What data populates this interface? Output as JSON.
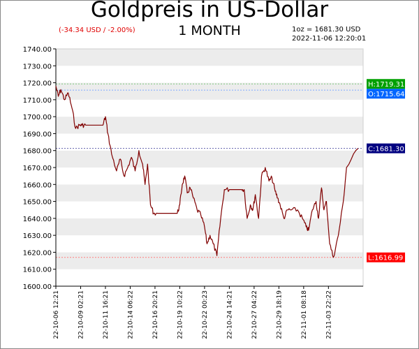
{
  "header": {
    "title": "Goldpreis in US-Dollar",
    "period": "1 MONTH",
    "change": "(-34.34 USD / -2.00%)",
    "price_line": "1oz = 1681.30 USD",
    "timestamp": "2022-11-06 12:20:01"
  },
  "markers": {
    "high": {
      "label": "H:1719.31",
      "value": 1719.31,
      "color": "#00a000",
      "line_color": "#7fc87f"
    },
    "open": {
      "label": "O:1715.64",
      "value": 1715.64,
      "color": "#0066ff",
      "line_color": "#7fa8ff"
    },
    "close": {
      "label": "C:1681.30",
      "value": 1681.3,
      "color": "#000080",
      "line_color": "#6a6ab0"
    },
    "low": {
      "label": "L:1616.99",
      "value": 1616.99,
      "color": "#ff0000",
      "line_color": "#ff7f7f"
    }
  },
  "chart_data": {
    "type": "line",
    "title": "Goldpreis in US-Dollar",
    "subtitle": "1 MONTH",
    "ylim": [
      1600,
      1740
    ],
    "yticks": [
      "1600.00",
      "1610.00",
      "1620.00",
      "1630.00",
      "1640.00",
      "1650.00",
      "1660.00",
      "1670.00",
      "1680.00",
      "1690.00",
      "1700.00",
      "1710.00",
      "1720.00",
      "1730.00",
      "1740.00"
    ],
    "xticks": [
      "22-10-06 12:21",
      "22-10-09 02:21",
      "22-10-11 16:21",
      "22-10-14 06:22",
      "22-10-16 20:21",
      "22-10-19 10:22",
      "22-10-22 00:23",
      "22-10-24 14:21",
      "22-10-27 04:22",
      "22-10-29 18:19",
      "22-11-01 08:18",
      "22-11-03 22:22"
    ],
    "grid": "alternating horizontal bands",
    "line_color": "#800000",
    "series": [
      {
        "x": [
          0,
          0.1,
          0.2,
          0.35,
          0.5,
          0.65,
          0.8,
          0.95,
          1.05,
          1.2,
          1.5,
          1.9,
          2.0,
          2.1,
          2.25,
          2.45,
          2.6,
          2.75,
          2.9,
          3.05,
          3.2,
          3.35,
          3.5,
          3.6,
          3.7,
          3.82,
          3.95,
          4.1,
          4.4,
          4.9,
          5.0,
          5.1,
          5.2,
          5.3,
          5.42,
          5.55,
          5.7,
          5.85,
          6.0,
          6.1,
          6.22,
          6.35,
          6.5,
          6.65,
          6.8,
          7.0,
          7.5,
          7.6,
          7.72,
          7.85,
          7.95,
          8.05,
          8.18,
          8.3,
          8.45,
          8.6,
          8.72,
          8.85,
          8.95,
          9.05,
          9.2,
          9.35,
          9.5,
          9.75,
          9.95,
          10.1,
          10.2,
          10.35,
          10.5,
          10.6,
          10.72,
          10.82,
          10.92,
          11.05,
          11.2,
          11.4,
          11.6,
          11.73,
          12.2
        ],
        "y": [
          1718,
          1712,
          1716,
          1710,
          1714,
          1705,
          1693,
          1695,
          1695,
          1695,
          1695,
          1695,
          1700,
          1690,
          1678,
          1668,
          1675,
          1665,
          1670,
          1676,
          1668,
          1680,
          1672,
          1660,
          1672,
          1648,
          1643,
          1643,
          1643,
          1643,
          1648,
          1660,
          1665,
          1655,
          1658,
          1652,
          1645,
          1642,
          1635,
          1625,
          1630,
          1625,
          1618,
          1640,
          1657,
          1657,
          1657,
          1657,
          1640,
          1648,
          1645,
          1654,
          1640,
          1665,
          1670,
          1662,
          1664,
          1656,
          1652,
          1648,
          1640,
          1645,
          1645,
          1645,
          1640,
          1635,
          1633,
          1645,
          1650,
          1640,
          1658,
          1645,
          1650,
          1625,
          1617,
          1630,
          1650,
          1670,
          1681.3
        ]
      }
    ]
  }
}
